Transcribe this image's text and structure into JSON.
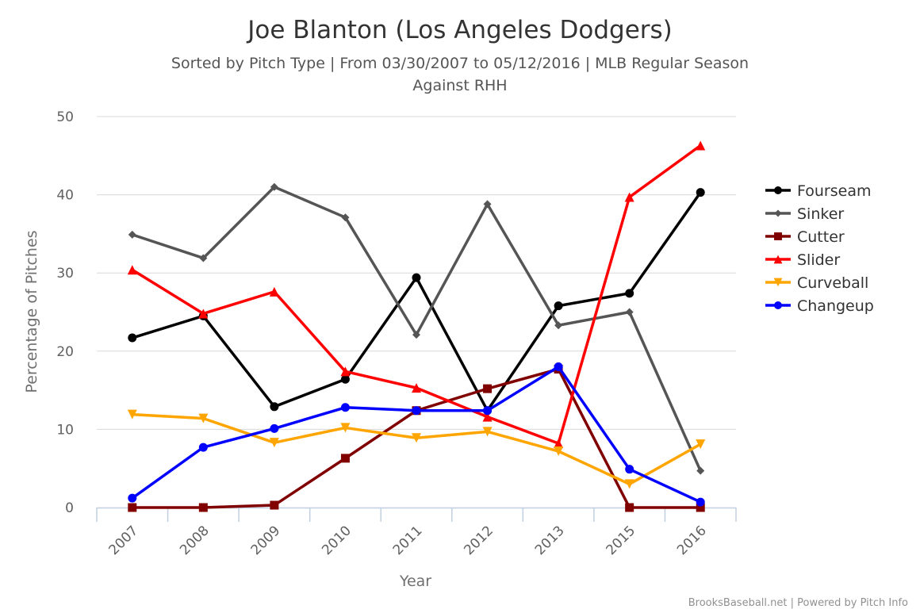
{
  "chart_data": {
    "type": "line",
    "title": "Joe Blanton (Los Angeles Dodgers)",
    "subtitle_line1": "Sorted by Pitch Type | From 03/30/2007 to 05/12/2016 | MLB Regular Season",
    "subtitle_line2": "Against RHH",
    "xlabel": "Year",
    "ylabel": "Percentage of Pitches",
    "categories": [
      "2007",
      "2008",
      "2009",
      "2010",
      "2011",
      "2012",
      "2013",
      "2015",
      "2016"
    ],
    "ylim": [
      0,
      50
    ],
    "yticks": [
      "0",
      "10",
      "20",
      "30",
      "40",
      "50"
    ],
    "grid": true,
    "legend_position": "right",
    "series": [
      {
        "name": "Fourseam",
        "color": "#000000",
        "marker": "circle",
        "values": [
          21.7,
          24.5,
          12.9,
          16.4,
          29.4,
          12.4,
          25.8,
          27.4,
          40.3
        ]
      },
      {
        "name": "Sinker",
        "color": "#555555",
        "marker": "diamond",
        "values": [
          34.9,
          31.9,
          41.0,
          37.1,
          22.1,
          38.8,
          23.3,
          25.0,
          4.7
        ]
      },
      {
        "name": "Cutter",
        "color": "#800000",
        "marker": "square",
        "values": [
          0.0,
          0.0,
          0.3,
          6.3,
          12.4,
          15.2,
          17.7,
          0.0,
          0.0
        ]
      },
      {
        "name": "Slider",
        "color": "#ff0000",
        "marker": "triangle",
        "values": [
          30.4,
          24.8,
          27.6,
          17.4,
          15.3,
          11.6,
          8.2,
          39.7,
          46.3
        ]
      },
      {
        "name": "Curveball",
        "color": "#ffa500",
        "marker": "triangle-down",
        "values": [
          11.9,
          11.4,
          8.3,
          10.2,
          8.9,
          9.7,
          7.2,
          3.0,
          8.1
        ]
      },
      {
        "name": "Changeup",
        "color": "#0000ff",
        "marker": "circle",
        "values": [
          1.2,
          7.7,
          10.1,
          12.8,
          12.4,
          12.4,
          18.0,
          4.9,
          0.7
        ]
      }
    ]
  },
  "credits": "BrooksBaseball.net | Powered by Pitch Info"
}
